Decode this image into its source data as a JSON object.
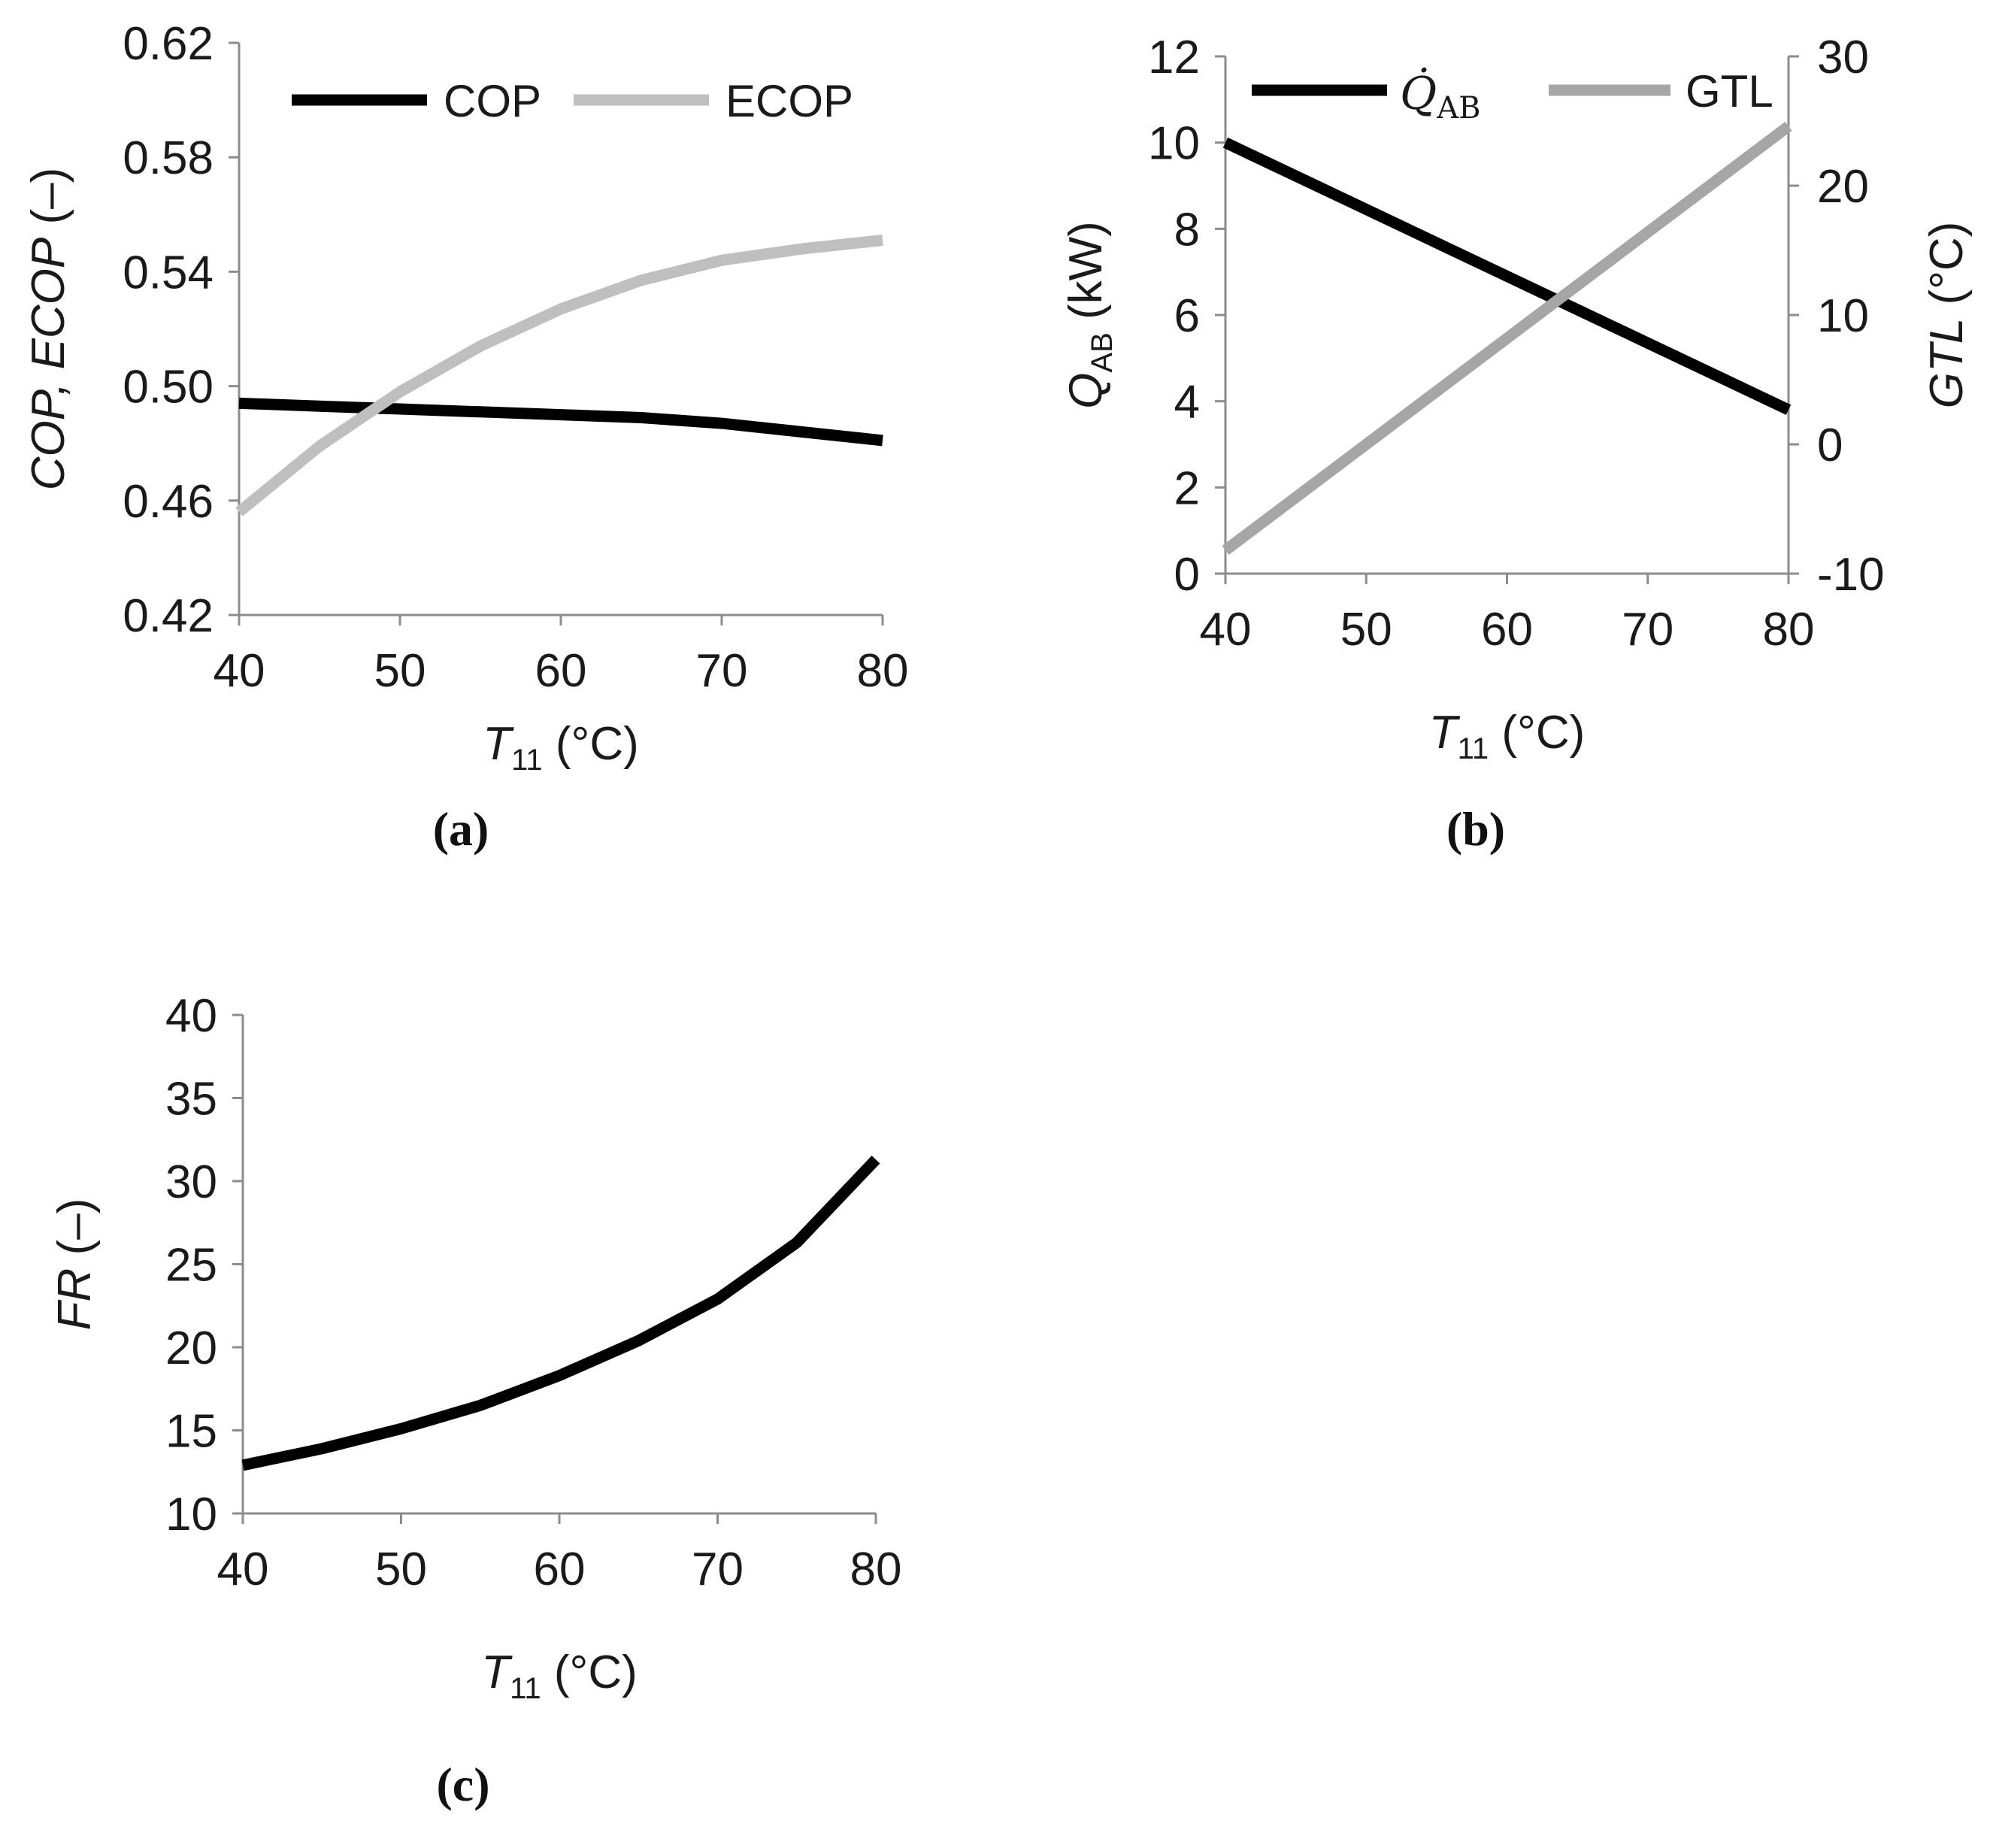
{
  "chart_data": [
    {
      "id": "a",
      "type": "line",
      "panel_label": "(a)",
      "title": "",
      "xlabel": "T11 (°C)",
      "xlabel_parts": {
        "main": "T",
        "sub": "11",
        "unit": " (°C)"
      },
      "ylabel": "COP, ECOP (–)",
      "xlim": [
        40,
        80
      ],
      "ylim": [
        0.42,
        0.62
      ],
      "xticks": [
        "40",
        "50",
        "60",
        "70",
        "80"
      ],
      "yticks": [
        "0.42",
        "0.46",
        "0.50",
        "0.54",
        "0.58",
        "0.62"
      ],
      "legend_position": "top",
      "series": [
        {
          "name": "COP",
          "color": "#000000",
          "x": [
            40,
            45,
            50,
            55,
            60,
            65,
            70,
            75,
            80
          ],
          "y": [
            0.494,
            0.493,
            0.492,
            0.491,
            0.49,
            0.489,
            0.487,
            0.484,
            0.481
          ]
        },
        {
          "name": "ECOP",
          "color": "#bfbfbf",
          "x": [
            40,
            45,
            50,
            55,
            60,
            65,
            70,
            75,
            80
          ],
          "y": [
            0.456,
            0.479,
            0.498,
            0.514,
            0.527,
            0.537,
            0.544,
            0.548,
            0.551
          ]
        }
      ]
    },
    {
      "id": "b",
      "type": "line",
      "panel_label": "(b)",
      "title": "",
      "xlabel": "T11 (°C)",
      "xlabel_parts": {
        "main": "T",
        "sub": "11",
        "unit": " (°C)"
      },
      "ylabel_left": "QAB (kW)",
      "ylabel_left_parts": {
        "main": "Q",
        "sub": "AB",
        "unit": " (kW)"
      },
      "ylabel_right": "GTL (°C)",
      "xlim": [
        40,
        80
      ],
      "ylim_left": [
        0,
        12
      ],
      "ylim_right": [
        -10,
        30
      ],
      "xticks": [
        "40",
        "50",
        "60",
        "70",
        "80"
      ],
      "yticks_left": [
        "0",
        "2",
        "4",
        "6",
        "8",
        "10",
        "12"
      ],
      "yticks_right": [
        "-10",
        "0",
        "10",
        "20",
        "30"
      ],
      "legend_position": "top",
      "series": [
        {
          "name": "Q̇AB",
          "name_parts": {
            "main": "Q̇",
            "sub": "AB"
          },
          "axis": "left",
          "color": "#000000",
          "x": [
            40,
            50,
            60,
            70,
            80
          ],
          "y": [
            10.0,
            8.45,
            6.9,
            5.35,
            3.8
          ]
        },
        {
          "name": "GTL",
          "axis": "right",
          "color": "#a6a6a6",
          "x": [
            40,
            50,
            60,
            70,
            80
          ],
          "y": [
            -8.2,
            0.0,
            8.2,
            16.4,
            24.6
          ]
        }
      ]
    },
    {
      "id": "c",
      "type": "line",
      "panel_label": "(c)",
      "title": "",
      "xlabel": "T11 (°C)",
      "xlabel_parts": {
        "main": "T",
        "sub": "11",
        "unit": " (°C)"
      },
      "ylabel": "FR (–)",
      "xlim": [
        40,
        80
      ],
      "ylim": [
        10,
        40
      ],
      "xticks": [
        "40",
        "50",
        "60",
        "70",
        "80"
      ],
      "yticks": [
        "10",
        "15",
        "20",
        "25",
        "30",
        "35",
        "40"
      ],
      "series": [
        {
          "name": "FR",
          "color": "#000000",
          "x": [
            40,
            45,
            50,
            55,
            60,
            65,
            70,
            75,
            80
          ],
          "y": [
            12.9,
            13.9,
            15.1,
            16.5,
            18.3,
            20.4,
            22.9,
            26.3,
            31.3
          ]
        }
      ]
    }
  ]
}
